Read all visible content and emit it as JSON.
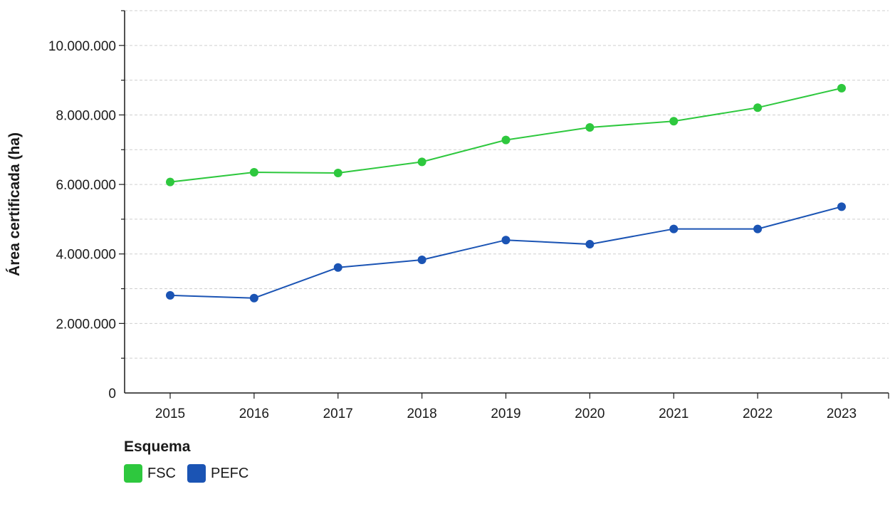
{
  "chart_data": {
    "type": "line",
    "x": [
      "2015",
      "2016",
      "2017",
      "2018",
      "2019",
      "2020",
      "2021",
      "2022",
      "2023"
    ],
    "series": [
      {
        "name": "FSC",
        "color": "#2ec83e",
        "values": [
          6070000,
          6350000,
          6330000,
          6650000,
          7280000,
          7640000,
          7820000,
          8210000,
          8770000
        ]
      },
      {
        "name": "PEFC",
        "color": "#1b54b4",
        "values": [
          2810000,
          2730000,
          3610000,
          3830000,
          4400000,
          4280000,
          4720000,
          4720000,
          5360000
        ]
      }
    ],
    "ylabel": "Área certificada (ha)",
    "ylim": [
      0,
      11000000
    ],
    "yticks": [
      0,
      2000000,
      4000000,
      6000000,
      8000000,
      10000000
    ],
    "ytick_labels": [
      "0",
      "2.000.000",
      "4.000.000",
      "6.000.000",
      "8.000.000",
      "10.000.000"
    ],
    "grid": true,
    "legend": {
      "title": "Esquema",
      "position": "bottom-left"
    }
  }
}
